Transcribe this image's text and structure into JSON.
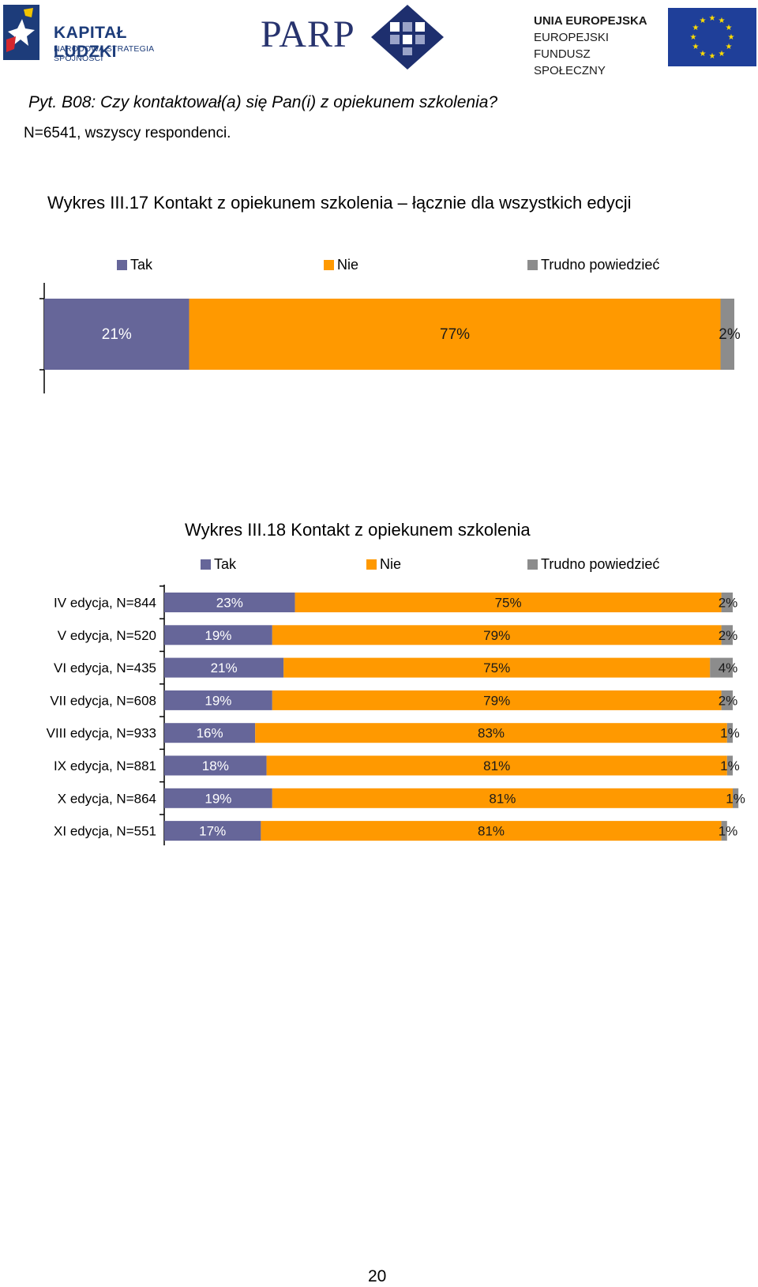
{
  "header": {
    "kl_line1": "KAPITAŁ LUDZKI",
    "kl_line2": "NARODOWA STRATEGIA SPÓJNOŚCI",
    "parp": "PARP",
    "eu_line1": "UNIA EUROPEJSKA",
    "eu_line2": "EUROPEJSKI",
    "eu_line3": "FUNDUSZ SPOŁECZNY"
  },
  "question": "Pyt. B08: Czy kontaktował(a) się Pan(i) z opiekunem szkolenia?",
  "respondents": "N=6541, wszyscy respondenci.",
  "page_number": "20",
  "colors": {
    "tak": "#666699",
    "nie": "#FF9900",
    "trudno": "#8c8c8c",
    "eu_blue": "#1f3f99",
    "eu_star": "#ffdd00"
  },
  "chart_data": [
    {
      "type": "bar",
      "orientation": "horizontal",
      "stacked": true,
      "title": "Wykres III.17 Kontakt z opiekunem szkolenia – łącznie dla wszystkich edycji",
      "legend": [
        "Tak",
        "Nie",
        "Trudno powiedzieć"
      ],
      "legend_position": "top",
      "categories": [
        ""
      ],
      "series": [
        {
          "name": "Tak",
          "values": [
            21
          ],
          "labels": [
            "21%"
          ]
        },
        {
          "name": "Nie",
          "values": [
            77
          ],
          "labels": [
            "77%"
          ]
        },
        {
          "name": "Trudno powiedzieć",
          "values": [
            2
          ],
          "labels": [
            "2%"
          ]
        }
      ],
      "xlim": [
        0,
        100
      ]
    },
    {
      "type": "bar",
      "orientation": "horizontal",
      "stacked": true,
      "title": "Wykres III.18 Kontakt z opiekunem szkolenia",
      "legend": [
        "Tak",
        "Nie",
        "Trudno powiedzieć"
      ],
      "legend_position": "top",
      "categories": [
        "IV edycja, N=844",
        "V edycja, N=520",
        "VI edycja, N=435",
        "VII edycja, N=608",
        "VIII edycja, N=933",
        "IX edycja, N=881",
        "X edycja, N=864",
        "XI edycja, N=551"
      ],
      "series": [
        {
          "name": "Tak",
          "values": [
            23,
            19,
            21,
            19,
            16,
            18,
            19,
            17
          ],
          "labels": [
            "23%",
            "19%",
            "21%",
            "19%",
            "16%",
            "18%",
            "19%",
            "17%"
          ]
        },
        {
          "name": "Nie",
          "values": [
            75,
            79,
            75,
            79,
            83,
            81,
            81,
            81
          ],
          "labels": [
            "75%",
            "79%",
            "75%",
            "79%",
            "83%",
            "81%",
            "81%",
            "81%"
          ]
        },
        {
          "name": "Trudno powiedzieć",
          "values": [
            2,
            2,
            4,
            2,
            1,
            1,
            1,
            1
          ],
          "labels": [
            "2%",
            "2%",
            "4%",
            "2%",
            "1%",
            "1%",
            "1%",
            "1%"
          ]
        }
      ],
      "xlim": [
        0,
        100
      ]
    }
  ]
}
